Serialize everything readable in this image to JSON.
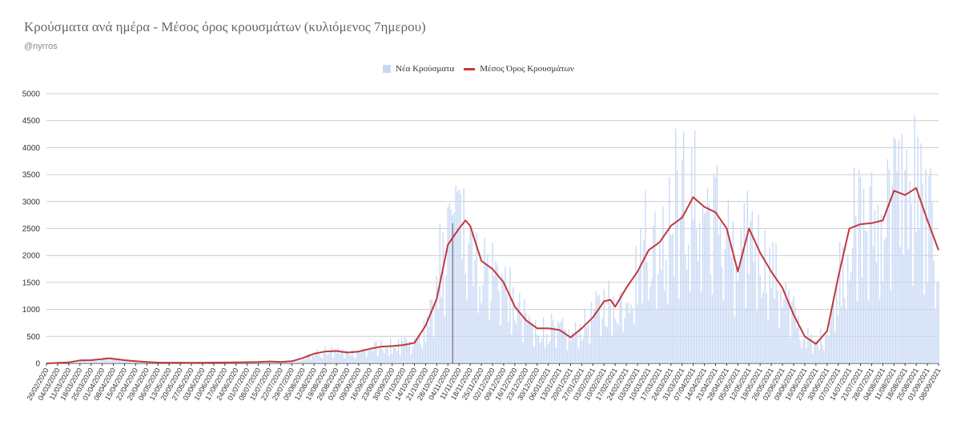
{
  "title": "Κρούσματα ανά ημέρα - Μέσος όρος κρουσμάτων (κυλιόμενος 7ημερου)",
  "subtitle": "@nyrros",
  "legend": {
    "bars": "Νέα Κρούσματα",
    "line": "Μέσος Όρος Κρουσμάτων",
    "position": "top-center"
  },
  "colors": {
    "bars": "#c9d9f5",
    "line": "#c0393d",
    "grid": "#cccccc",
    "axis": "#333333",
    "marker": "#555555"
  },
  "chart_data": {
    "type": "bar",
    "title": "Κρούσματα ανά ημέρα - Μέσος όρος κρουσμάτων (κυλιόμενος 7ημερου)",
    "xlabel": "",
    "ylabel": "",
    "ylim": [
      0,
      5000
    ],
    "yticks": [
      "0",
      "500",
      "1000",
      "1500",
      "2000",
      "2500",
      "3000",
      "3500",
      "4000",
      "4500",
      "5000"
    ],
    "grid": true,
    "x_start": "26/02/2020",
    "x_end": "08/09/2021",
    "xtick_labels": [
      "26/02/2020",
      "04/03/2020",
      "11/03/2020",
      "18/03/2020",
      "25/03/2020",
      "01/04/2020",
      "08/04/2020",
      "15/04/2020",
      "22/04/2020",
      "29/04/2020",
      "06/05/2020",
      "13/05/2020",
      "20/05/2020",
      "27/05/2020",
      "03/06/2020",
      "10/06/2020",
      "17/06/2020",
      "24/06/2020",
      "01/07/2020",
      "08/07/2020",
      "15/07/2020",
      "22/07/2020",
      "29/07/2020",
      "05/08/2020",
      "12/08/2020",
      "19/08/2020",
      "26/08/2020",
      "02/09/2020",
      "09/09/2020",
      "16/09/2020",
      "23/09/2020",
      "30/09/2020",
      "07/10/2020",
      "14/10/2020",
      "21/10/2020",
      "28/10/2020",
      "04/11/2020",
      "11/11/2020",
      "18/11/2020",
      "25/11/2020",
      "02/12/2020",
      "09/12/2020",
      "16/12/2020",
      "23/12/2020",
      "30/12/2020",
      "06/01/2021",
      "13/01/2021",
      "20/01/2021",
      "27/01/2021",
      "03/02/2021",
      "10/02/2021",
      "17/02/2021",
      "24/02/2021",
      "03/03/2021",
      "10/03/2021",
      "17/03/2021",
      "24/03/2021",
      "31/03/2021",
      "07/04/2021",
      "14/04/2021",
      "21/04/2021",
      "28/04/2021",
      "05/05/2021",
      "12/05/2021",
      "19/05/2021",
      "26/05/2021",
      "02/06/2021",
      "09/06/2021",
      "16/06/2021",
      "23/06/2021",
      "30/06/2021",
      "07/07/2021",
      "14/07/2021",
      "21/07/2021",
      "28/07/2021",
      "04/08/2021",
      "11/08/2021",
      "18/08/2021",
      "25/08/2021",
      "01/09/2021",
      "08/09/2021"
    ],
    "series": [
      {
        "name": "Μέσος Όρος Κρουσμάτων",
        "type": "line",
        "points": [
          [
            "26/02/2020",
            0
          ],
          [
            "11/03/2020",
            20
          ],
          [
            "18/03/2020",
            55
          ],
          [
            "25/03/2020",
            60
          ],
          [
            "01/04/2020",
            80
          ],
          [
            "05/04/2020",
            95
          ],
          [
            "15/04/2020",
            60
          ],
          [
            "22/04/2020",
            40
          ],
          [
            "29/04/2020",
            25
          ],
          [
            "06/05/2020",
            15
          ],
          [
            "27/05/2020",
            10
          ],
          [
            "10/06/2020",
            15
          ],
          [
            "24/06/2020",
            18
          ],
          [
            "08/07/2020",
            25
          ],
          [
            "15/07/2020",
            35
          ],
          [
            "22/07/2020",
            25
          ],
          [
            "29/07/2020",
            40
          ],
          [
            "05/08/2020",
            100
          ],
          [
            "12/08/2020",
            180
          ],
          [
            "19/08/2020",
            220
          ],
          [
            "26/08/2020",
            230
          ],
          [
            "02/09/2020",
            200
          ],
          [
            "09/09/2020",
            220
          ],
          [
            "16/09/2020",
            270
          ],
          [
            "23/09/2020",
            310
          ],
          [
            "30/09/2020",
            320
          ],
          [
            "07/10/2020",
            340
          ],
          [
            "14/10/2020",
            380
          ],
          [
            "21/10/2020",
            700
          ],
          [
            "28/10/2020",
            1200
          ],
          [
            "04/11/2020",
            2200
          ],
          [
            "11/11/2020",
            2500
          ],
          [
            "15/11/2020",
            2650
          ],
          [
            "18/11/2020",
            2550
          ],
          [
            "25/11/2020",
            1900
          ],
          [
            "02/12/2020",
            1750
          ],
          [
            "09/12/2020",
            1500
          ],
          [
            "16/12/2020",
            1050
          ],
          [
            "23/12/2020",
            800
          ],
          [
            "30/12/2020",
            650
          ],
          [
            "06/01/2021",
            650
          ],
          [
            "13/01/2021",
            620
          ],
          [
            "20/01/2021",
            480
          ],
          [
            "27/01/2021",
            650
          ],
          [
            "03/02/2021",
            850
          ],
          [
            "10/02/2021",
            1150
          ],
          [
            "14/02/2021",
            1180
          ],
          [
            "17/02/2021",
            1050
          ],
          [
            "24/02/2021",
            1400
          ],
          [
            "03/03/2021",
            1700
          ],
          [
            "10/03/2021",
            2100
          ],
          [
            "17/03/2021",
            2250
          ],
          [
            "24/03/2021",
            2550
          ],
          [
            "31/03/2021",
            2700
          ],
          [
            "07/04/2021",
            3080
          ],
          [
            "14/04/2021",
            2900
          ],
          [
            "21/04/2021",
            2800
          ],
          [
            "28/04/2021",
            2500
          ],
          [
            "05/05/2021",
            1700
          ],
          [
            "12/05/2021",
            2500
          ],
          [
            "19/05/2021",
            2050
          ],
          [
            "26/05/2021",
            1700
          ],
          [
            "02/06/2021",
            1400
          ],
          [
            "09/06/2021",
            900
          ],
          [
            "16/06/2021",
            500
          ],
          [
            "23/06/2021",
            360
          ],
          [
            "30/06/2021",
            600
          ],
          [
            "07/07/2021",
            1600
          ],
          [
            "14/07/2021",
            2500
          ],
          [
            "21/07/2021",
            2580
          ],
          [
            "28/07/2021",
            2600
          ],
          [
            "04/08/2021",
            2650
          ],
          [
            "11/08/2021",
            3200
          ],
          [
            "18/08/2021",
            3120
          ],
          [
            "25/08/2021",
            3250
          ],
          [
            "01/09/2021",
            2650
          ],
          [
            "08/09/2021",
            2100
          ]
        ]
      },
      {
        "name": "Νέα Κρούσματα",
        "type": "bar",
        "peaks": [
          [
            "30/10/2020",
            2600
          ],
          [
            "04/11/2020",
            2900
          ],
          [
            "09/11/2020",
            3300
          ],
          [
            "14/11/2020",
            3250
          ],
          [
            "08/03/2021",
            3200
          ],
          [
            "23/03/2021",
            3450
          ],
          [
            "27/03/2021",
            4350
          ],
          [
            "01/04/2021",
            4300
          ],
          [
            "06/04/2021",
            4000
          ],
          [
            "20/04/2021",
            3500
          ],
          [
            "11/05/2021",
            3200
          ],
          [
            "20/07/2021",
            3600
          ],
          [
            "28/07/2021",
            3550
          ],
          [
            "08/08/2021",
            3600
          ],
          [
            "11/08/2021",
            4200
          ],
          [
            "16/08/2021",
            4250
          ],
          [
            "24/08/2021",
            4600
          ],
          [
            "31/08/2021",
            3600
          ]
        ]
      }
    ],
    "vertical_marker": "07/11/2020"
  }
}
